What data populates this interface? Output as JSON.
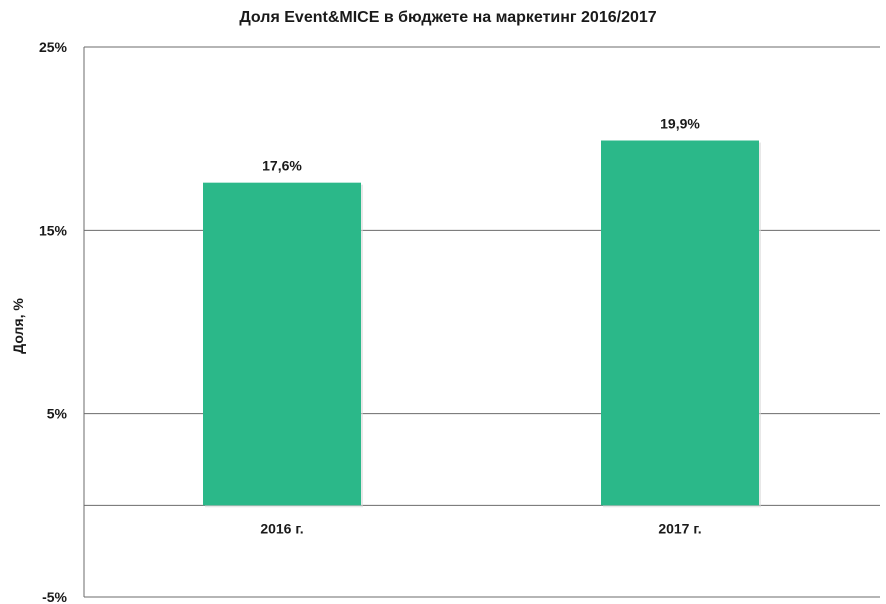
{
  "chart_data": {
    "type": "bar",
    "title": "Доля Event&MICE в бюджете на маркетинг 2016/2017",
    "xlabel": "",
    "ylabel": "Доля, %",
    "categories": [
      "2016 г.",
      "2017 г."
    ],
    "values": [
      17.6,
      19.9
    ],
    "data_labels": [
      "17,6%",
      "19,9%"
    ],
    "ylim": [
      -5,
      25
    ],
    "y_ticks": [
      {
        "value": 25,
        "label": "25%"
      },
      {
        "value": 15,
        "label": "15%"
      },
      {
        "value": 5,
        "label": "5%"
      },
      {
        "value": -5,
        "label": "-5%"
      }
    ],
    "zero_line": true,
    "grid": true,
    "legend": "none",
    "bar_color": "#2bb889",
    "grid_color": "#6b6b6b"
  }
}
